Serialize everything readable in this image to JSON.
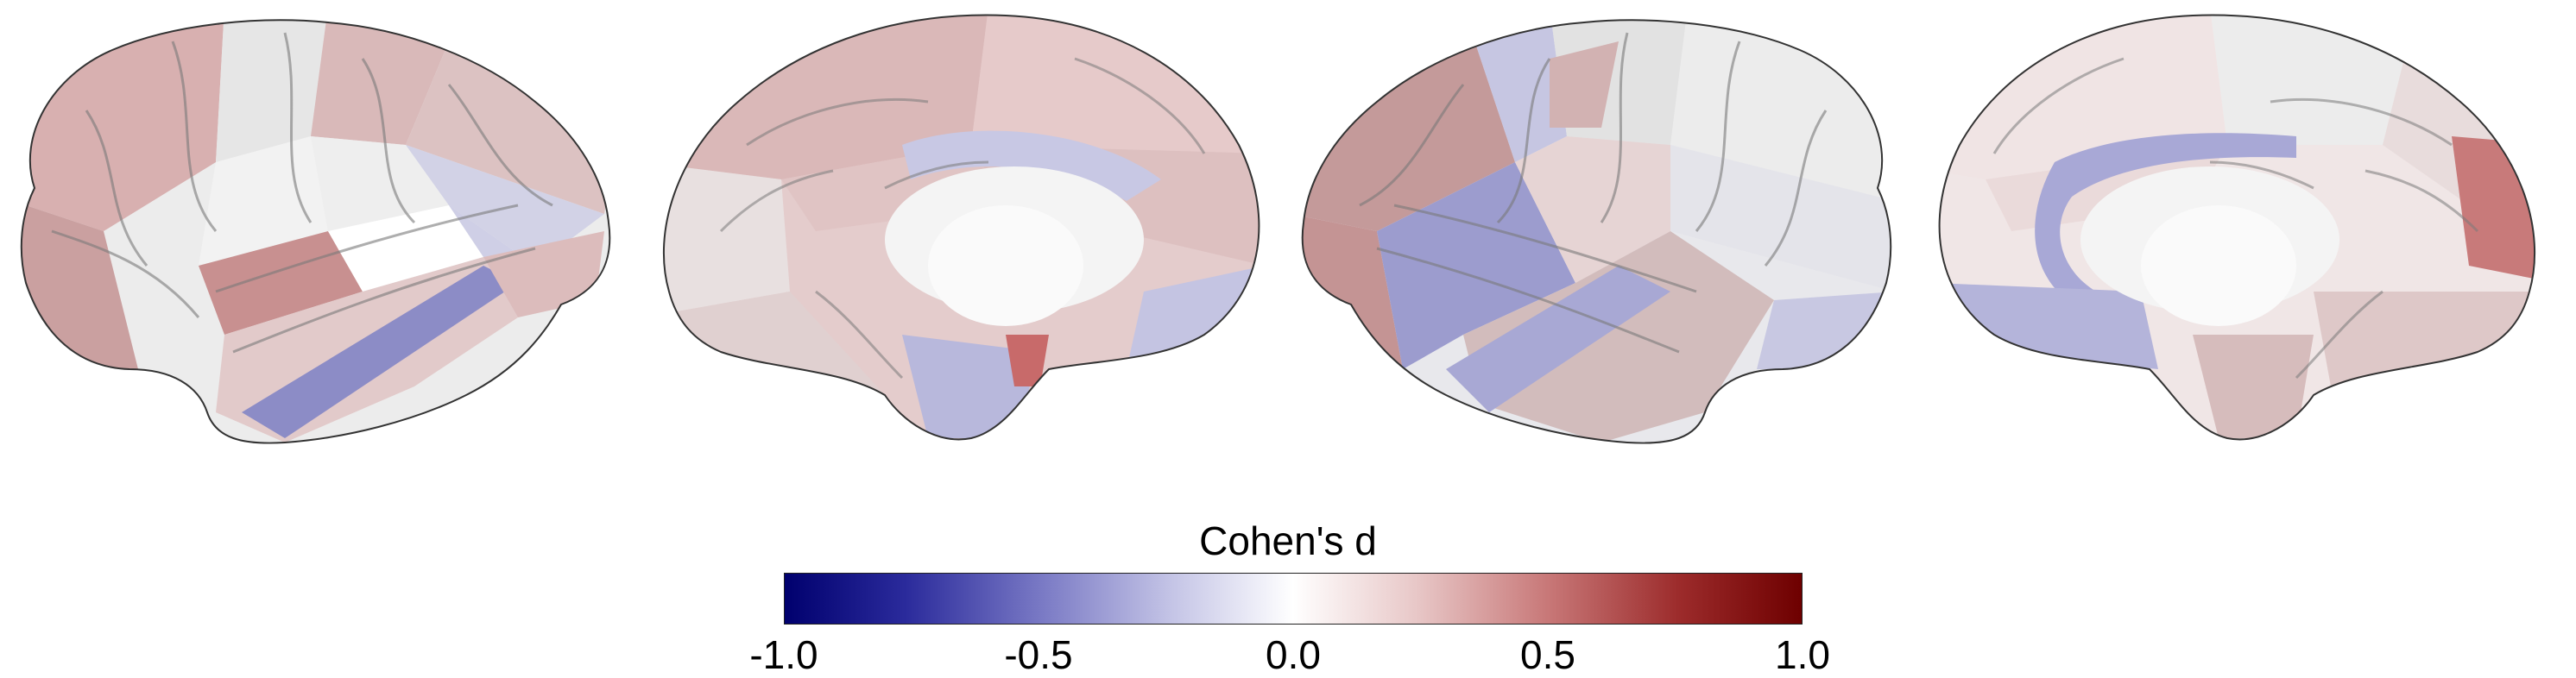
{
  "colorbar": {
    "title": "Cohen's d",
    "ticks": [
      "-1.0",
      "-0.5",
      "0.0",
      "0.5",
      "1.0"
    ],
    "range": [
      -1.0,
      1.0
    ],
    "colors": {
      "min": "#00006e",
      "mid": "#ffffff",
      "max": "#6e0000"
    }
  },
  "views": [
    {
      "hemisphere": "left",
      "view": "lateral"
    },
    {
      "hemisphere": "left",
      "view": "medial"
    },
    {
      "hemisphere": "right",
      "view": "lateral"
    },
    {
      "hemisphere": "right",
      "view": "medial"
    }
  ]
}
